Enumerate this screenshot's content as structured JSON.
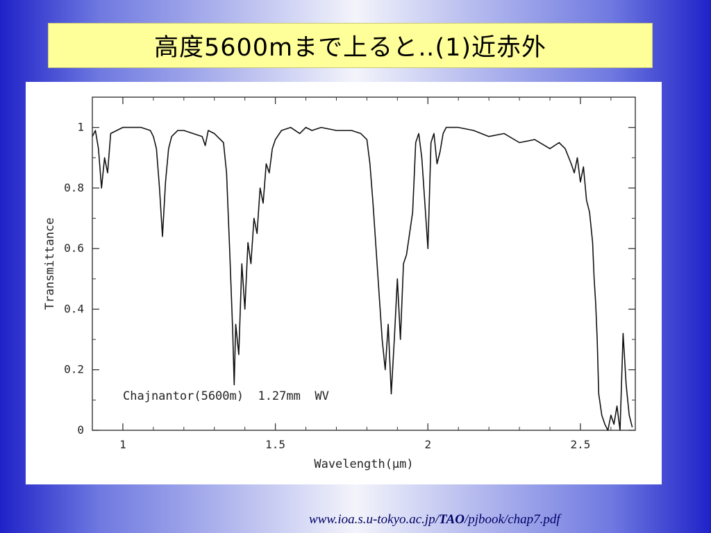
{
  "slide": {
    "title": "高度5600mまで上ると‥(1)近赤外",
    "source_url": {
      "prefix": "www.ioa.s.u-tokyo.ac.jp/",
      "bold": "TAO",
      "suffix": "/pjbook/chap7.pdf"
    }
  },
  "chart_data": {
    "type": "line",
    "title": "",
    "annotation": "Chajnantor(5600m)  1.27mm  WV",
    "xlabel": "Wavelength(μm)",
    "ylabel": "Transmittance",
    "xlim": [
      0.9,
      2.68
    ],
    "ylim": [
      0,
      1.1
    ],
    "x_ticks": [
      1,
      1.5,
      2,
      2.5
    ],
    "x_tick_labels": [
      "1",
      "1.5",
      "2",
      "2.5"
    ],
    "y_ticks": [
      0,
      0.2,
      0.4,
      0.6,
      0.8,
      1
    ],
    "y_tick_labels": [
      "0",
      "0.2",
      "0.4",
      "0.6",
      "0.8",
      "1"
    ],
    "grid": false,
    "series": [
      {
        "name": "",
        "x": [
          0.9,
          0.91,
          0.92,
          0.93,
          0.94,
          0.95,
          0.96,
          0.98,
          1.0,
          1.03,
          1.06,
          1.09,
          1.1,
          1.11,
          1.12,
          1.13,
          1.14,
          1.15,
          1.16,
          1.18,
          1.2,
          1.23,
          1.26,
          1.27,
          1.28,
          1.3,
          1.33,
          1.34,
          1.35,
          1.36,
          1.365,
          1.37,
          1.38,
          1.39,
          1.4,
          1.41,
          1.42,
          1.43,
          1.44,
          1.45,
          1.46,
          1.47,
          1.48,
          1.49,
          1.5,
          1.52,
          1.55,
          1.58,
          1.6,
          1.62,
          1.65,
          1.7,
          1.75,
          1.78,
          1.8,
          1.81,
          1.82,
          1.83,
          1.84,
          1.85,
          1.86,
          1.87,
          1.88,
          1.89,
          1.9,
          1.91,
          1.92,
          1.93,
          1.94,
          1.95,
          1.96,
          1.97,
          1.98,
          1.99,
          2.0,
          2.01,
          2.02,
          2.03,
          2.04,
          2.05,
          2.06,
          2.08,
          2.1,
          2.15,
          2.2,
          2.25,
          2.3,
          2.35,
          2.4,
          2.43,
          2.45,
          2.47,
          2.48,
          2.49,
          2.5,
          2.51,
          2.52,
          2.53,
          2.54,
          2.545,
          2.55,
          2.555,
          2.56,
          2.57,
          2.58,
          2.59,
          2.6,
          2.61,
          2.62,
          2.63,
          2.64,
          2.65,
          2.66,
          2.67
        ],
        "y": [
          0.97,
          0.99,
          0.93,
          0.8,
          0.9,
          0.85,
          0.98,
          0.99,
          1.0,
          1.0,
          1.0,
          0.99,
          0.97,
          0.93,
          0.8,
          0.64,
          0.82,
          0.93,
          0.97,
          0.99,
          0.99,
          0.98,
          0.97,
          0.94,
          0.99,
          0.98,
          0.95,
          0.85,
          0.6,
          0.33,
          0.15,
          0.35,
          0.25,
          0.55,
          0.4,
          0.62,
          0.55,
          0.7,
          0.65,
          0.8,
          0.75,
          0.88,
          0.85,
          0.93,
          0.96,
          0.99,
          1.0,
          0.98,
          1.0,
          0.99,
          1.0,
          0.99,
          0.99,
          0.98,
          0.96,
          0.88,
          0.75,
          0.6,
          0.45,
          0.3,
          0.2,
          0.35,
          0.12,
          0.3,
          0.5,
          0.3,
          0.55,
          0.58,
          0.65,
          0.72,
          0.95,
          0.98,
          0.9,
          0.75,
          0.6,
          0.95,
          0.98,
          0.88,
          0.92,
          0.98,
          1.0,
          1.0,
          1.0,
          0.99,
          0.97,
          0.98,
          0.95,
          0.96,
          0.93,
          0.95,
          0.93,
          0.88,
          0.85,
          0.9,
          0.82,
          0.87,
          0.76,
          0.72,
          0.62,
          0.5,
          0.42,
          0.3,
          0.12,
          0.05,
          0.02,
          0.0,
          0.05,
          0.02,
          0.08,
          0.0,
          0.32,
          0.15,
          0.05,
          0.01
        ]
      }
    ]
  }
}
